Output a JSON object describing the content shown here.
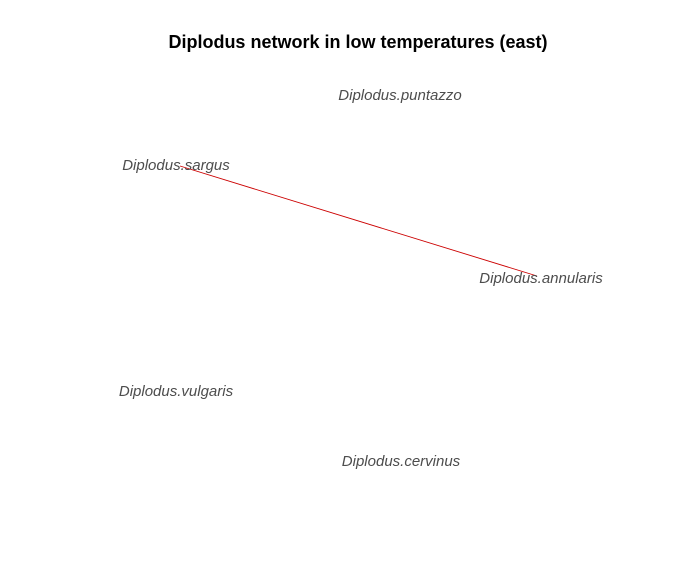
{
  "title": "Diplodus network in low temperatures (east)",
  "colors": {
    "edge": "#cc0000",
    "label": "#4d4d4d",
    "title": "#000000",
    "background": "#ffffff"
  },
  "nodes": [
    {
      "id": "puntazzo",
      "label": "Diplodus.puntazzo"
    },
    {
      "id": "sargus",
      "label": "Diplodus.sargus"
    },
    {
      "id": "annularis",
      "label": "Diplodus.annularis"
    },
    {
      "id": "vulgaris",
      "label": "Diplodus.vulgaris"
    },
    {
      "id": "cervinus",
      "label": "Diplodus.cervinus"
    }
  ],
  "edges": [
    {
      "from": "sargus",
      "to": "annularis"
    }
  ]
}
